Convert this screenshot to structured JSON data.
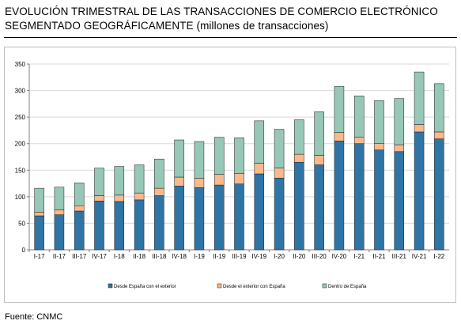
{
  "title": {
    "main": "EVOLUCIÓN TRIMESTRAL DE LAS TRANSACCIONES DE COMERCIO ELECTRÓNICO SEGMENTADO GEOGRÁFICAMENTE",
    "subtitle": "(millones de transacciones)"
  },
  "source": "Fuente: CNMC",
  "chart_data": {
    "type": "bar",
    "stacked": true,
    "categories": [
      "I-17",
      "II-17",
      "III-17",
      "IV-17",
      "I-18",
      "II-18",
      "III-18",
      "IV-18",
      "I-19",
      "II-19",
      "III-19",
      "IV-19",
      "I-20",
      "II-20",
      "III-20",
      "IV-20",
      "I-21",
      "II-21",
      "III-21",
      "IV-21",
      "I-22"
    ],
    "series": [
      {
        "name": "Desde España con el exterior",
        "color": "#2e75a6",
        "values": [
          64,
          66,
          73,
          92,
          91,
          94,
          102,
          120,
          117,
          122,
          124,
          143,
          135,
          165,
          160,
          205,
          200,
          188,
          185,
          222,
          209
        ]
      },
      {
        "name": "Desde el exterior con España",
        "color": "#f8b98d",
        "values": [
          7,
          9,
          10,
          10,
          12,
          13,
          14,
          17,
          18,
          20,
          20,
          20,
          19,
          15,
          18,
          16,
          12,
          12,
          13,
          14,
          13
        ]
      },
      {
        "name": "Dentro de España",
        "color": "#96c7b7",
        "values": [
          45,
          43,
          43,
          52,
          54,
          53,
          55,
          70,
          69,
          70,
          67,
          80,
          73,
          65,
          82,
          87,
          78,
          81,
          87,
          99,
          91
        ]
      }
    ],
    "yticks": [
      0,
      50,
      100,
      150,
      200,
      250,
      300,
      350
    ],
    "ylim": [
      0,
      350
    ],
    "legend_position": "bottom",
    "grid": true
  }
}
